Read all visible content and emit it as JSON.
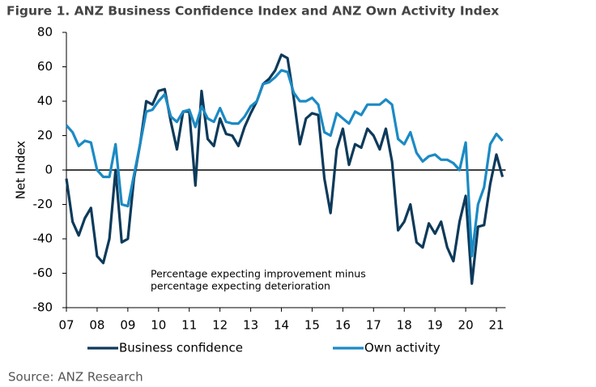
{
  "chart_data": {
    "type": "line",
    "title": "Figure 1. ANZ Business Confidence Index and ANZ Own Activity Index",
    "y_label": "Net Index",
    "annotations": [
      "Percentage expecting improvement minus",
      "percentage expecting deterioration"
    ],
    "source": "Source: ANZ Research",
    "x": [
      7.0,
      7.2,
      7.4,
      7.6,
      7.8,
      8.0,
      8.2,
      8.4,
      8.6,
      8.8,
      9.0,
      9.2,
      9.4,
      9.6,
      9.8,
      10.0,
      10.2,
      10.4,
      10.6,
      10.8,
      11.0,
      11.2,
      11.4,
      11.6,
      11.8,
      12.0,
      12.2,
      12.4,
      12.6,
      12.8,
      13.0,
      13.2,
      13.4,
      13.6,
      13.8,
      14.0,
      14.2,
      14.4,
      14.6,
      14.8,
      15.0,
      15.2,
      15.4,
      15.6,
      15.8,
      16.0,
      16.2,
      16.4,
      16.6,
      16.8,
      17.0,
      17.2,
      17.4,
      17.6,
      17.8,
      18.0,
      18.2,
      18.4,
      18.6,
      18.8,
      19.0,
      19.2,
      19.4,
      19.6,
      19.8,
      20.0,
      20.2,
      20.4,
      20.6,
      20.8,
      21.0,
      21.2
    ],
    "series": [
      {
        "name": "Business confidence",
        "color": "#0d3a5a",
        "values": [
          -5,
          -30,
          -38,
          -28,
          -22,
          -50,
          -54,
          -40,
          0,
          -42,
          -40,
          -5,
          15,
          40,
          38,
          46,
          47,
          28,
          12,
          34,
          34,
          -9,
          46,
          18,
          14,
          30,
          21,
          20,
          14,
          25,
          33,
          40,
          50,
          53,
          58,
          67,
          65,
          42,
          15,
          30,
          33,
          32,
          -5,
          -25,
          12,
          24,
          3,
          15,
          13,
          24,
          20,
          12,
          24,
          5,
          -35,
          -30,
          -20,
          -42,
          -45,
          -31,
          -37,
          -30,
          -45,
          -53,
          -30,
          -15,
          -66,
          -33,
          -32,
          -8,
          9,
          -4
        ]
      },
      {
        "name": "Own activity",
        "color": "#1b8ac4",
        "values": [
          26,
          22,
          14,
          17,
          16,
          0,
          -4,
          -4,
          15,
          -20,
          -21,
          -3,
          15,
          34,
          35,
          40,
          44,
          31,
          28,
          34,
          35,
          25,
          37,
          30,
          28,
          36,
          28,
          27,
          27,
          31,
          37,
          40,
          50,
          51,
          54,
          58,
          57,
          45,
          40,
          40,
          42,
          38,
          22,
          20,
          33,
          30,
          27,
          34,
          32,
          38,
          38,
          38,
          41,
          38,
          18,
          15,
          22,
          10,
          5,
          8,
          9,
          6,
          6,
          4,
          0,
          16,
          -50,
          -20,
          -10,
          15,
          21,
          17
        ]
      }
    ],
    "xlim": [
      7,
      21.3
    ],
    "xticks": [
      {
        "value": 7,
        "label": "07"
      },
      {
        "value": 8,
        "label": "08"
      },
      {
        "value": 9,
        "label": "09"
      },
      10,
      11,
      12,
      13,
      14,
      15,
      16,
      17,
      18,
      19,
      20,
      21
    ],
    "ylim": [
      -80,
      80
    ],
    "yticks": [
      -80,
      -60,
      -40,
      -20,
      0,
      20,
      40,
      60,
      80
    ],
    "grid": false,
    "legend": "bottom"
  }
}
